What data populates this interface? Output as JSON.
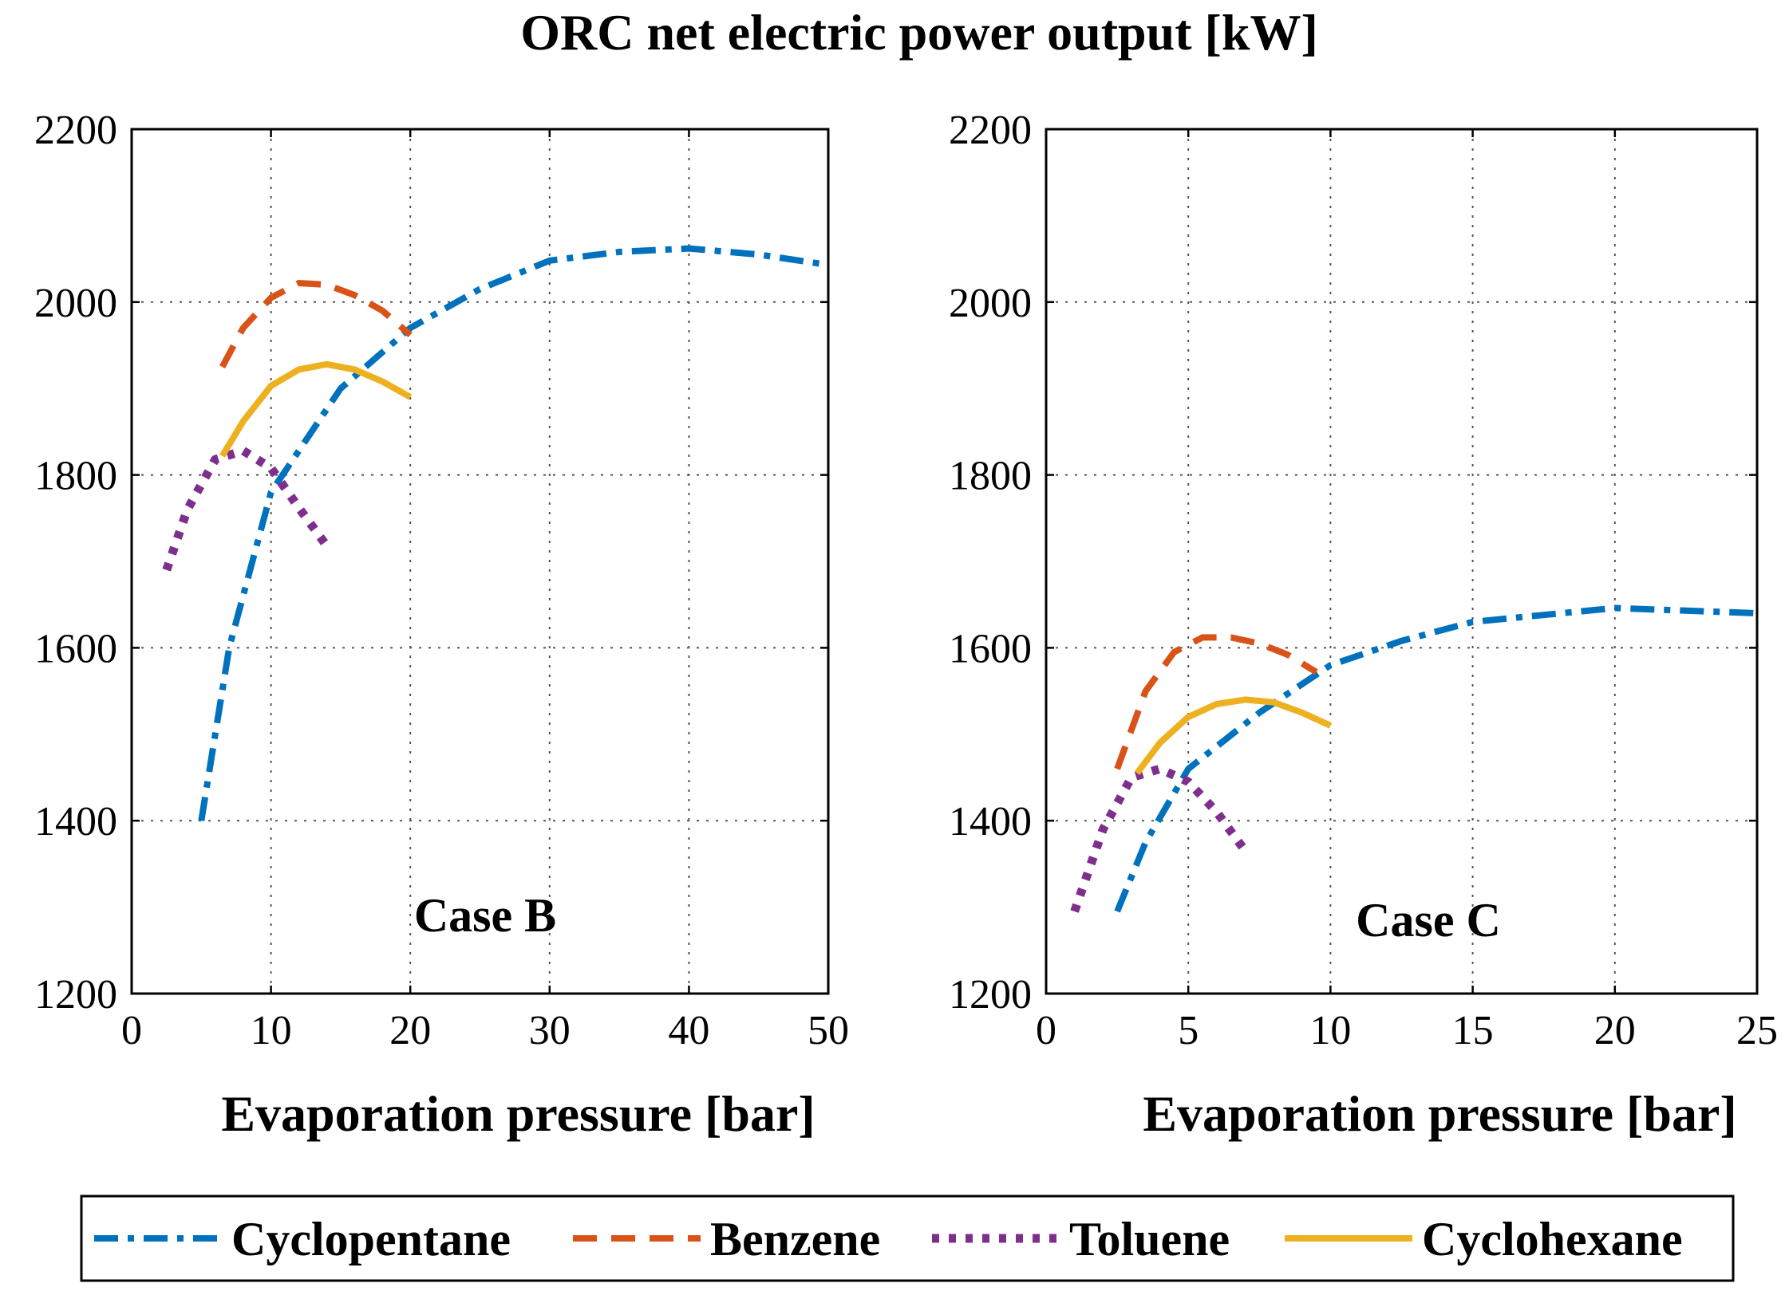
{
  "figure_title": "ORC net electric power output [kW]",
  "colors": {
    "Cyclopentane": "#0072BD",
    "Benzene": "#D95319",
    "Toluene": "#7E2F8E",
    "Cyclohexane": "#EDB120"
  },
  "legend": [
    {
      "name": "Cyclopentane",
      "style": "dashdot"
    },
    {
      "name": "Benzene",
      "style": "dashed"
    },
    {
      "name": "Toluene",
      "style": "dotted"
    },
    {
      "name": "Cyclohexane",
      "style": "solid"
    }
  ],
  "chart_data": [
    {
      "type": "line",
      "annotation": "Case B",
      "xlabel": "Evaporation pressure [bar]",
      "ylabel": "",
      "xlim": [
        0,
        50
      ],
      "ylim": [
        1200,
        2200
      ],
      "xticks": [
        0,
        10,
        20,
        30,
        40,
        50
      ],
      "yticks": [
        1200,
        1400,
        1600,
        1800,
        2000,
        2200
      ],
      "grid": true,
      "series": [
        {
          "name": "Cyclopentane",
          "x": [
            5,
            7,
            10,
            15,
            20,
            25,
            30,
            35,
            40,
            45,
            50
          ],
          "y": [
            1400,
            1600,
            1780,
            1900,
            1970,
            2015,
            2048,
            2058,
            2062,
            2055,
            2043
          ]
        },
        {
          "name": "Benzene",
          "x": [
            6.5,
            8,
            10,
            12,
            14,
            16,
            18,
            20
          ],
          "y": [
            1925,
            1970,
            2005,
            2022,
            2020,
            2008,
            1990,
            1962
          ]
        },
        {
          "name": "Toluene",
          "x": [
            2.5,
            4,
            6,
            8,
            10,
            12,
            14
          ],
          "y": [
            1690,
            1760,
            1818,
            1828,
            1808,
            1762,
            1718
          ]
        },
        {
          "name": "Cyclohexane",
          "x": [
            6.5,
            8,
            10,
            12,
            14,
            16,
            18,
            20
          ],
          "y": [
            1822,
            1862,
            1903,
            1922,
            1928,
            1922,
            1908,
            1890
          ]
        }
      ]
    },
    {
      "type": "line",
      "annotation": "Case C",
      "xlabel": "Evaporation pressure [bar]",
      "ylabel": "",
      "xlim": [
        0,
        25
      ],
      "ylim": [
        1200,
        2200
      ],
      "xticks": [
        0,
        5,
        10,
        15,
        20,
        25
      ],
      "yticks": [
        1200,
        1400,
        1600,
        1800,
        2000,
        2200
      ],
      "grid": true,
      "series": [
        {
          "name": "Cyclopentane",
          "x": [
            2.5,
            3.5,
            5,
            7.5,
            10,
            12.5,
            15,
            17.5,
            20,
            22.5,
            25
          ],
          "y": [
            1295,
            1375,
            1460,
            1525,
            1580,
            1608,
            1630,
            1638,
            1646,
            1643,
            1640
          ]
        },
        {
          "name": "Benzene",
          "x": [
            2.5,
            3.5,
            4.5,
            5.5,
            6.5,
            7.5,
            8.5,
            9.5
          ],
          "y": [
            1460,
            1550,
            1595,
            1612,
            1612,
            1605,
            1592,
            1572
          ]
        },
        {
          "name": "Toluene",
          "x": [
            1,
            2,
            3,
            4,
            5,
            6,
            7
          ],
          "y": [
            1295,
            1390,
            1450,
            1460,
            1445,
            1410,
            1365
          ]
        },
        {
          "name": "Cyclohexane",
          "x": [
            3.2,
            4,
            5,
            6,
            7,
            8,
            9,
            10
          ],
          "y": [
            1455,
            1490,
            1520,
            1535,
            1540,
            1537,
            1525,
            1510
          ]
        }
      ]
    }
  ]
}
